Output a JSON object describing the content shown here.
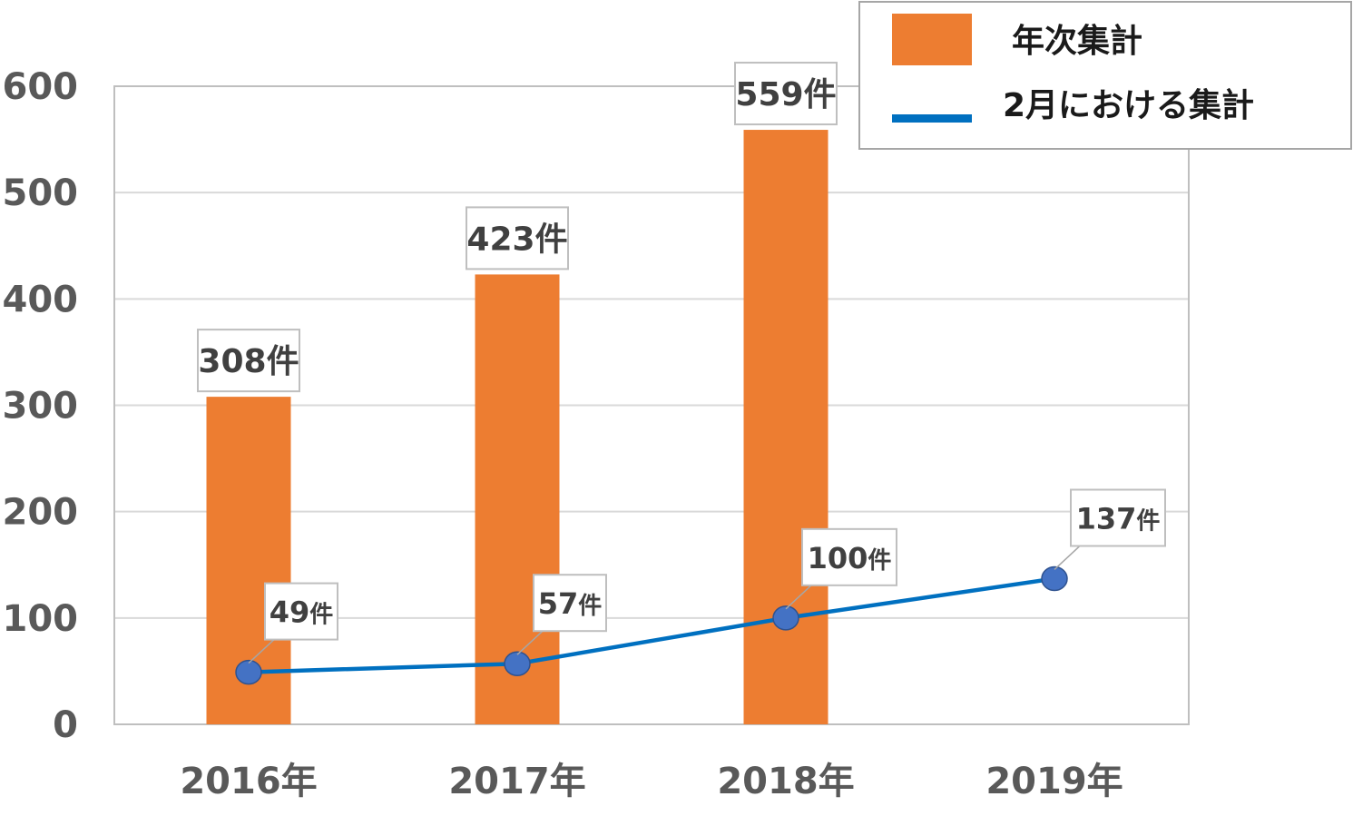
{
  "chart_data": {
    "type": "bar",
    "categories": [
      "2016年",
      "2017年",
      "2018年",
      "2019年"
    ],
    "ylim": [
      0,
      600
    ],
    "yticks": [
      "0",
      "100",
      "200",
      "300",
      "400",
      "500",
      "600"
    ],
    "grid": true,
    "legend_position": "top-right",
    "series": [
      {
        "name": "年次集計",
        "type": "bar",
        "color": "#ED7D31",
        "values": [
          308,
          423,
          559,
          null
        ],
        "labels": [
          "308件",
          "423件",
          "559件",
          ""
        ]
      },
      {
        "name": "2月における集計",
        "type": "line",
        "color": "#0070C0",
        "marker_color": "#4472C4",
        "values": [
          49,
          57,
          100,
          137
        ],
        "label_numbers": [
          "49",
          "57",
          "100",
          "137"
        ],
        "label_unit": "件"
      }
    ]
  }
}
